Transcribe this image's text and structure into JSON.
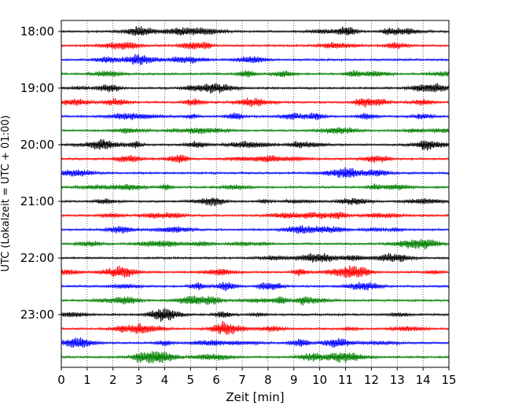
{
  "chart_data": {
    "type": "line",
    "chart_kind": "helicorder (seismogram drum plot)",
    "xlabel": "Zeit  [min]",
    "ylabel": "UTC (Lokalzeit = UTC + 01:00)",
    "xlim": [
      0,
      15
    ],
    "x_ticks": [
      "0",
      "1",
      "2",
      "3",
      "4",
      "5",
      "6",
      "7",
      "8",
      "9",
      "10",
      "11",
      "12",
      "13",
      "14",
      "15"
    ],
    "grid": "vertical dotted lines at each minute",
    "y_tick_labels": [
      "18:00",
      "19:00",
      "20:00",
      "21:00",
      "22:00",
      "23:00"
    ],
    "traces_per_hour": 4,
    "trace_minutes": 15,
    "trace_colors": [
      "#000000",
      "#ff0000",
      "#0000ff",
      "#008000"
    ],
    "traces": [
      {
        "start": "18:00",
        "color": "#000000"
      },
      {
        "start": "18:15",
        "color": "#ff0000"
      },
      {
        "start": "18:30",
        "color": "#0000ff"
      },
      {
        "start": "18:45",
        "color": "#008000"
      },
      {
        "start": "19:00",
        "color": "#000000"
      },
      {
        "start": "19:15",
        "color": "#ff0000"
      },
      {
        "start": "19:30",
        "color": "#0000ff"
      },
      {
        "start": "19:45",
        "color": "#008000"
      },
      {
        "start": "20:00",
        "color": "#000000"
      },
      {
        "start": "20:15",
        "color": "#ff0000"
      },
      {
        "start": "20:30",
        "color": "#0000ff"
      },
      {
        "start": "20:45",
        "color": "#008000"
      },
      {
        "start": "21:00",
        "color": "#000000"
      },
      {
        "start": "21:15",
        "color": "#ff0000"
      },
      {
        "start": "21:30",
        "color": "#0000ff"
      },
      {
        "start": "21:45",
        "color": "#008000"
      },
      {
        "start": "22:00",
        "color": "#000000"
      },
      {
        "start": "22:15",
        "color": "#ff0000"
      },
      {
        "start": "22:30",
        "color": "#0000ff"
      },
      {
        "start": "22:45",
        "color": "#008000"
      },
      {
        "start": "23:00",
        "color": "#000000"
      },
      {
        "start": "23:15",
        "color": "#ff0000"
      },
      {
        "start": "23:30",
        "color": "#0000ff"
      },
      {
        "start": "23:45",
        "color": "#008000"
      }
    ]
  }
}
